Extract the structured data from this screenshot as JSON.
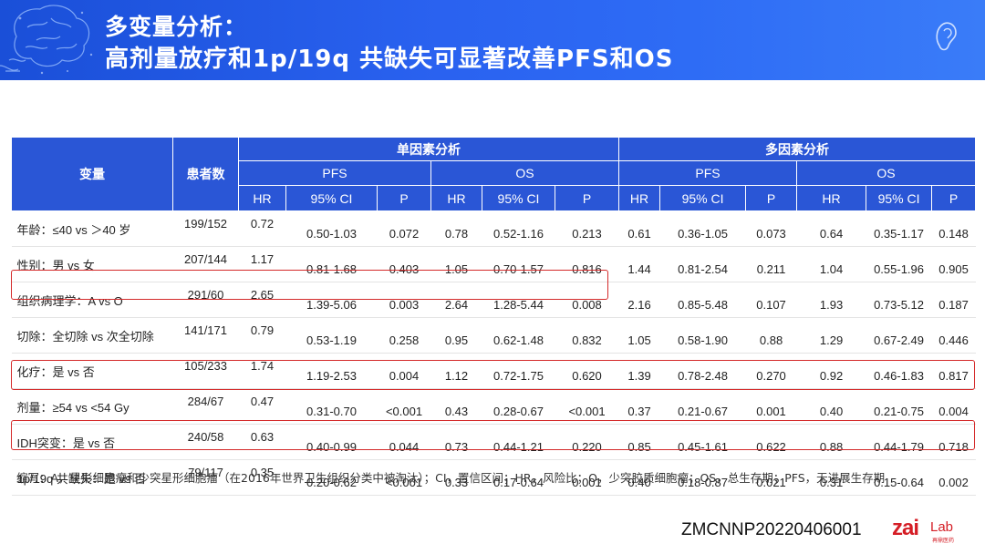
{
  "header": {
    "title_line1": "多变量分析：",
    "title_line2": "高剂量放疗和1p/19q 共缺失可显著改善PFS和OS"
  },
  "table": {
    "col_variable": "变量",
    "col_patients": "患者数",
    "group_univariate": "单因素分析",
    "group_multivariate": "多因素分析",
    "pfs": "PFS",
    "os": "OS",
    "hr": "HR",
    "ci": "95% CI",
    "p": "P",
    "rows": [
      {
        "variable": "年龄：≤40 vs ＞40 岁",
        "patients": "199/152",
        "u_pfs_hr": "0.72",
        "u_pfs_ci": "0.50-1.03",
        "u_pfs_p": "0.072",
        "u_os_hr": "0.78",
        "u_os_ci": "0.52-1.16",
        "u_os_p": "0.213",
        "m_pfs_hr": "0.61",
        "m_pfs_ci": "0.36-1.05",
        "m_pfs_p": "0.073",
        "m_os_hr": "0.64",
        "m_os_ci": "0.35-1.17",
        "m_os_p": "0.148"
      },
      {
        "variable": "性别：男 vs 女",
        "patients": "207/144",
        "u_pfs_hr": "1.17",
        "u_pfs_ci": "0.81-1.68",
        "u_pfs_p": "0.403",
        "u_os_hr": "1.05",
        "u_os_ci": "0.70-1.57",
        "u_os_p": "0.816",
        "m_pfs_hr": "1.44",
        "m_pfs_ci": "0.81-2.54",
        "m_pfs_p": "0.211",
        "m_os_hr": "1.04",
        "m_os_ci": "0.55-1.96",
        "m_os_p": "0.905"
      },
      {
        "variable": "组织病理学：A vs O",
        "patients": "291/60",
        "u_pfs_hr": "2.65",
        "u_pfs_ci": "1.39-5.06",
        "u_pfs_p": "0.003",
        "u_os_hr": "2.64",
        "u_os_ci": "1.28-5.44",
        "u_os_p": "0.008",
        "m_pfs_hr": "2.16",
        "m_pfs_ci": "0.85-5.48",
        "m_pfs_p": "0.107",
        "m_os_hr": "1.93",
        "m_os_ci": "0.73-5.12",
        "m_os_p": "0.187"
      },
      {
        "variable": "切除：全切除 vs 次全切除",
        "patients": "141/171",
        "u_pfs_hr": "0.79",
        "u_pfs_ci": "0.53-1.19",
        "u_pfs_p": "0.258",
        "u_os_hr": "0.95",
        "u_os_ci": "0.62-1.48",
        "u_os_p": "0.832",
        "m_pfs_hr": "1.05",
        "m_pfs_ci": "0.58-1.90",
        "m_pfs_p": "0.88",
        "m_os_hr": "1.29",
        "m_os_ci": "0.67-2.49",
        "m_os_p": "0.446"
      },
      {
        "variable": "化疗：是 vs 否",
        "patients": "105/233",
        "u_pfs_hr": "1.74",
        "u_pfs_ci": "1.19-2.53",
        "u_pfs_p": "0.004",
        "u_os_hr": "1.12",
        "u_os_ci": "0.72-1.75",
        "u_os_p": "0.620",
        "m_pfs_hr": "1.39",
        "m_pfs_ci": "0.78-2.48",
        "m_pfs_p": "0.270",
        "m_os_hr": "0.92",
        "m_os_ci": "0.46-1.83",
        "m_os_p": "0.817"
      },
      {
        "variable": "剂量：≥54 vs <54 Gy",
        "patients": "284/67",
        "u_pfs_hr": "0.47",
        "u_pfs_ci": "0.31-0.70",
        "u_pfs_p": "<0.001",
        "u_os_hr": "0.43",
        "u_os_ci": "0.28-0.67",
        "u_os_p": "<0.001",
        "m_pfs_hr": "0.37",
        "m_pfs_ci": "0.21-0.67",
        "m_pfs_p": "0.001",
        "m_os_hr": "0.40",
        "m_os_ci": "0.21-0.75",
        "m_os_p": "0.004"
      },
      {
        "variable": "IDH突变：是 vs 否",
        "patients": "240/58",
        "u_pfs_hr": "0.63",
        "u_pfs_ci": "0.40-0.99",
        "u_pfs_p": "0.044",
        "u_os_hr": "0.73",
        "u_os_ci": "0.44-1.21",
        "u_os_p": "0.220",
        "m_pfs_hr": "0.85",
        "m_pfs_ci": "0.45-1.61",
        "m_pfs_p": "0.622",
        "m_os_hr": "0.88",
        "m_os_ci": "0.44-1.79",
        "m_os_p": "0.718"
      },
      {
        "variable": "1p/19q 共缺失：是 vs 否",
        "patients": "79/117",
        "u_pfs_hr": "0.35",
        "u_pfs_ci": "0.20-0.62",
        "u_pfs_p": "<0.001",
        "u_os_hr": "0.33",
        "u_os_ci": "0.17-0.64",
        "u_os_p": "0.001",
        "m_pfs_hr": "0.40",
        "m_pfs_ci": "0.18-0.87",
        "m_pfs_p": "0.021",
        "m_os_hr": "0.31",
        "m_os_ci": "0.15-0.64",
        "m_os_p": "0.002"
      }
    ]
  },
  "footnote": "缩写：A，星形细胞瘤和少突星形细胞瘤（在2016年世界卫生组织分类中被淘汰）；CI，置信区间；HR，风险比；O，少突胶质细胞瘤；OS，总生存期；PFS，无进展生存期",
  "doc_code": "ZMCNNP20220406001",
  "logo": {
    "main": "zai",
    "lab": "Lab",
    "sub": "再鼎医药"
  },
  "colors": {
    "header_blue": "#2a56d6",
    "highlight_red": "#d42a2a",
    "banner_blue": "#2a62f0",
    "logo_red": "#d51e26"
  }
}
